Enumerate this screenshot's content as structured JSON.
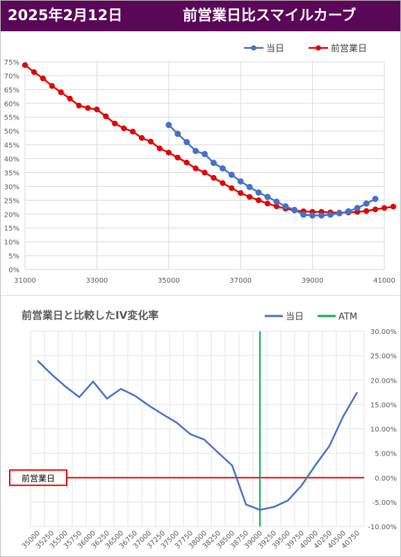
{
  "header": {
    "date": "2025年2月12日",
    "title": "前営業日比スマイルカーブ"
  },
  "colors": {
    "header_bg": "#5b0758",
    "today": "#4472c4",
    "prev": "#ee0000",
    "atm": "#00b050",
    "diff_line": "#4472c4"
  },
  "chart_data": [
    {
      "type": "line",
      "legend": [
        "当日",
        "前営業日"
      ],
      "legend_position": "top-right",
      "grid": true,
      "xlim": [
        31000,
        41000
      ],
      "ylim": [
        0,
        75
      ],
      "x_ticks": [
        31000,
        33000,
        35000,
        37000,
        39000,
        41000
      ],
      "y_ticks": [
        "0%",
        "5%",
        "10%",
        "15%",
        "20%",
        "25%",
        "30%",
        "35%",
        "40%",
        "45%",
        "50%",
        "55%",
        "60%",
        "65%",
        "70%",
        "75%"
      ],
      "series": [
        {
          "name": "当日",
          "points": [
            [
              35000,
              52.2
            ],
            [
              35250,
              49.0
            ],
            [
              35500,
              46.0
            ],
            [
              35750,
              42.8
            ],
            [
              36000,
              41.7
            ],
            [
              36250,
              38.5
            ],
            [
              36500,
              36.5
            ],
            [
              36750,
              34.2
            ],
            [
              37000,
              31.8
            ],
            [
              37250,
              29.8
            ],
            [
              37500,
              27.8
            ],
            [
              37750,
              26.2
            ],
            [
              38000,
              24.5
            ],
            [
              38250,
              22.8
            ],
            [
              38500,
              21.5
            ],
            [
              38750,
              19.8
            ],
            [
              39000,
              19.5
            ],
            [
              39250,
              19.5
            ],
            [
              39500,
              19.8
            ],
            [
              39750,
              20.3
            ],
            [
              40000,
              21.0
            ],
            [
              40250,
              22.2
            ],
            [
              40500,
              23.8
            ],
            [
              40750,
              25.5
            ]
          ]
        },
        {
          "name": "前営業日",
          "points": [
            [
              31000,
              73.8
            ],
            [
              31250,
              71.3
            ],
            [
              31500,
              69.0
            ],
            [
              31750,
              66.3
            ],
            [
              32000,
              64.0
            ],
            [
              32250,
              61.7
            ],
            [
              32500,
              59.2
            ],
            [
              32750,
              58.3
            ],
            [
              33000,
              57.8
            ],
            [
              33250,
              55.3
            ],
            [
              33500,
              52.7
            ],
            [
              33750,
              51.0
            ],
            [
              34000,
              49.8
            ],
            [
              34250,
              47.5
            ],
            [
              34500,
              46.2
            ],
            [
              34750,
              43.7
            ],
            [
              35000,
              42.2
            ],
            [
              35250,
              40.4
            ],
            [
              35500,
              38.6
            ],
            [
              35750,
              36.5
            ],
            [
              36000,
              35.0
            ],
            [
              36250,
              33.1
            ],
            [
              36500,
              31.2
            ],
            [
              36750,
              29.4
            ],
            [
              37000,
              27.6
            ],
            [
              37250,
              26.2
            ],
            [
              37500,
              25.0
            ],
            [
              37750,
              23.8
            ],
            [
              38000,
              22.8
            ],
            [
              38250,
              22.0
            ],
            [
              38500,
              21.3
            ],
            [
              38750,
              21.0
            ],
            [
              39000,
              20.8
            ],
            [
              39250,
              20.8
            ],
            [
              39500,
              20.6
            ],
            [
              39750,
              20.5
            ],
            [
              40000,
              20.6
            ],
            [
              40250,
              20.8
            ],
            [
              40500,
              21.1
            ],
            [
              40750,
              21.7
            ],
            [
              41000,
              22.2
            ],
            [
              41250,
              22.7
            ]
          ]
        }
      ]
    },
    {
      "type": "line",
      "title": "前営業日と比較したIV変化率",
      "legend": [
        "当日",
        "ATM"
      ],
      "legend_position": "top-right",
      "grid": true,
      "ylim": [
        -10,
        30
      ],
      "y_ticks": [
        "30.00%",
        "25.00%",
        "20.00%",
        "15.00%",
        "10.00%",
        "5.00%",
        "0.00%",
        "-5.00%",
        "-10.00%"
      ],
      "categories": [
        "35000",
        "35250",
        "35500",
        "35750",
        "36000",
        "36250",
        "36500",
        "36750",
        "37000",
        "37250",
        "37500",
        "37750",
        "38000",
        "38250",
        "38500",
        "38750",
        "39000",
        "39250",
        "39500",
        "39750",
        "40000",
        "40250",
        "40500",
        "40750"
      ],
      "atm_strike": "39000",
      "baseline_label": "前営業日",
      "series": [
        {
          "name": "当日",
          "values": [
            24.0,
            21.2,
            18.7,
            16.5,
            19.7,
            16.2,
            18.2,
            16.8,
            14.8,
            13.0,
            11.3,
            8.9,
            7.8,
            5.1,
            2.5,
            -5.5,
            -6.6,
            -6.0,
            -4.7,
            -1.6,
            2.6,
            6.5,
            12.6,
            17.5
          ]
        }
      ]
    }
  ]
}
